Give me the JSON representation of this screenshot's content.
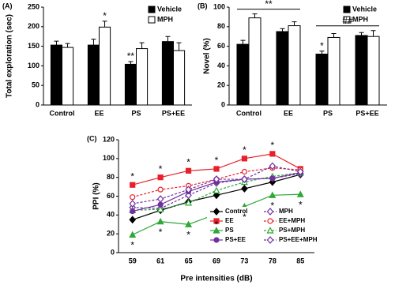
{
  "chart_data": [
    {
      "type": "bar",
      "panel_label": "(A)",
      "y_label": "Total exploration (sec)",
      "categories": [
        "Control",
        "EE",
        "PS",
        "PS+EE"
      ],
      "series": [
        {
          "name": "Vehicle",
          "color": "#000000",
          "values": [
            153,
            153,
            104,
            162
          ],
          "errors": [
            10,
            15,
            7,
            13
          ]
        },
        {
          "name": "MPH",
          "color": "#ffffff",
          "values": [
            147,
            199,
            144,
            139
          ],
          "errors": [
            10,
            15,
            15,
            20
          ]
        }
      ],
      "ylim": [
        0,
        250
      ],
      "yticks": [
        0,
        50,
        100,
        150,
        200,
        250
      ],
      "grid": false,
      "legend": "top-right",
      "annotations": [
        {
          "text": "*",
          "category": "EE",
          "series": "MPH"
        },
        {
          "text": "**",
          "category": "PS",
          "series": "Vehicle"
        }
      ]
    },
    {
      "type": "bar",
      "panel_label": "(B)",
      "y_label": "Novel (%)",
      "categories": [
        "Control",
        "EE",
        "PS",
        "PS+EE"
      ],
      "series": [
        {
          "name": "Vehicle",
          "color": "#000000",
          "values": [
            62,
            75,
            52,
            71
          ],
          "errors": [
            4,
            3,
            3,
            3
          ]
        },
        {
          "name": "MPH",
          "color": "#ffffff",
          "values": [
            89,
            81,
            69,
            70
          ],
          "errors": [
            4,
            4,
            4,
            6
          ]
        }
      ],
      "ylim": [
        0,
        100
      ],
      "yticks": [
        0,
        20,
        40,
        60,
        80,
        100
      ],
      "grid": false,
      "legend": "top-right",
      "annotations": [
        {
          "text": "**",
          "span": [
            "Control",
            "EE"
          ]
        },
        {
          "text": "*",
          "category": "PS",
          "series": "Vehicle"
        },
        {
          "text": "##",
          "span": [
            "PS",
            "PS+EE"
          ]
        }
      ]
    },
    {
      "type": "line",
      "panel_label": "(C)",
      "y_label": "PPI (%)",
      "x_label": "Pre intensities (dB)",
      "categories": [
        "59",
        "61",
        "65",
        "69",
        "73",
        "78",
        "85"
      ],
      "series": [
        {
          "name": "Control",
          "color": "#000000",
          "marker": "diamond",
          "filled": true,
          "dashed": false,
          "values": [
            35,
            45,
            54,
            61,
            68,
            75,
            83
          ]
        },
        {
          "name": "MPH",
          "color": "#7030a0",
          "marker": "diamond",
          "filled": false,
          "dashed": true,
          "values": [
            48,
            47,
            61,
            74,
            78,
            79,
            84
          ]
        },
        {
          "name": "EE",
          "color": "#e8202a",
          "marker": "square",
          "filled": true,
          "dashed": false,
          "values": [
            72,
            80,
            87,
            89,
            100,
            105,
            89
          ]
        },
        {
          "name": "EE+MPH",
          "color": "#e8202a",
          "marker": "circle",
          "filled": false,
          "dashed": true,
          "values": [
            59,
            67,
            71,
            78,
            86,
            90,
            88
          ]
        },
        {
          "name": "PS",
          "color": "#2ea836",
          "marker": "triangle",
          "filled": true,
          "dashed": false,
          "values": [
            19,
            33,
            30,
            41,
            49,
            61,
            62
          ]
        },
        {
          "name": "PS+MPH",
          "color": "#2ea836",
          "marker": "triangle",
          "filled": false,
          "dashed": true,
          "values": [
            45,
            46,
            53,
            66,
            75,
            81,
            85
          ]
        },
        {
          "name": "PS+EE",
          "color": "#7030a0",
          "marker": "circle",
          "filled": true,
          "dashed": false,
          "values": [
            44,
            51,
            65,
            75,
            78,
            79,
            85
          ]
        },
        {
          "name": "PS+EE+MPH",
          "color": "#7030a0",
          "marker": "diamond",
          "filled": false,
          "dashed": true,
          "values": [
            52,
            57,
            67,
            78,
            78,
            92,
            86
          ]
        }
      ],
      "ylim": [
        0,
        120
      ],
      "yticks": [
        0,
        20,
        40,
        60,
        80,
        100,
        120
      ],
      "grid": false,
      "legend": "bottom-right",
      "annotations": [
        {
          "text": "*",
          "category": "59",
          "series": "EE",
          "position": "above"
        },
        {
          "text": "*",
          "category": "61",
          "series": "EE",
          "position": "above"
        },
        {
          "text": "*",
          "category": "65",
          "series": "EE",
          "position": "above"
        },
        {
          "text": "*",
          "category": "69",
          "series": "EE",
          "position": "above"
        },
        {
          "text": "*",
          "category": "73",
          "series": "EE",
          "position": "above"
        },
        {
          "text": "*",
          "category": "78",
          "series": "EE",
          "position": "above"
        },
        {
          "text": "*",
          "category": "59",
          "series": "PS",
          "position": "below"
        },
        {
          "text": "*",
          "category": "61",
          "series": "PS",
          "position": "below"
        },
        {
          "text": "*",
          "category": "65",
          "series": "PS",
          "position": "below"
        },
        {
          "text": "*",
          "category": "69",
          "series": "PS",
          "position": "below"
        },
        {
          "text": "*",
          "category": "73",
          "series": "PS",
          "position": "below"
        },
        {
          "text": "*",
          "category": "78",
          "series": "PS",
          "position": "below"
        },
        {
          "text": "*",
          "category": "85",
          "series": "PS",
          "position": "below"
        }
      ]
    }
  ]
}
